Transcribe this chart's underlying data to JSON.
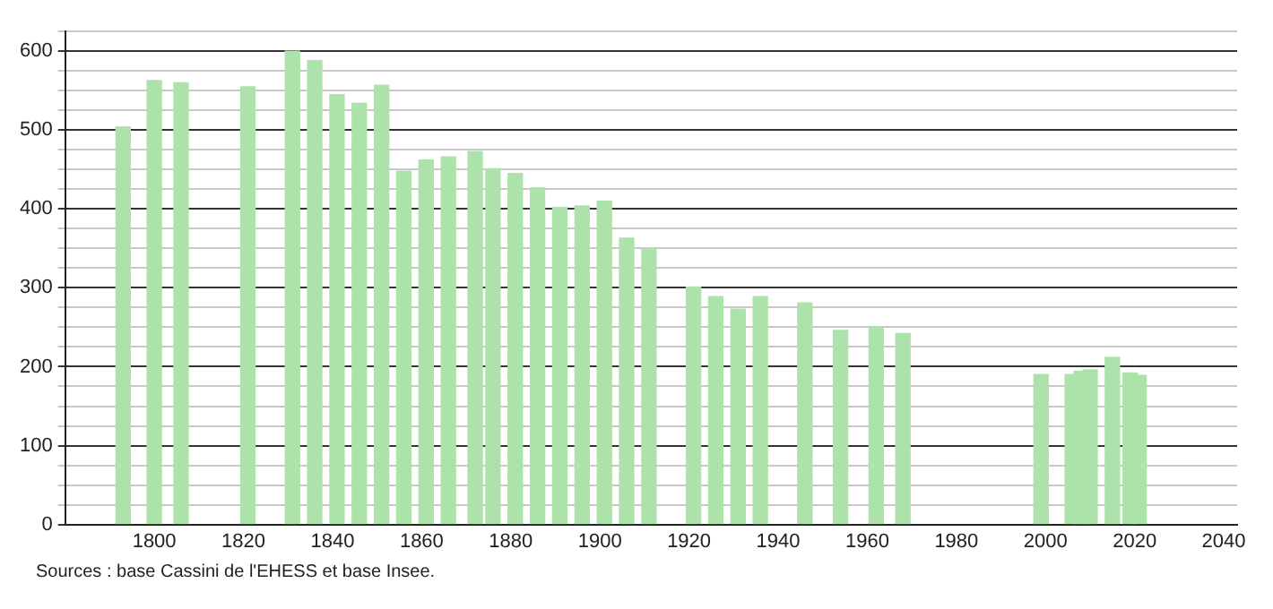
{
  "chart_data": {
    "type": "bar",
    "x": [
      1793,
      1800,
      1806,
      1821,
      1831,
      1836,
      1841,
      1846,
      1851,
      1856,
      1861,
      1866,
      1872,
      1876,
      1881,
      1886,
      1891,
      1896,
      1901,
      1906,
      1911,
      1921,
      1926,
      1931,
      1936,
      1946,
      1954,
      1962,
      1968,
      1999,
      2006,
      2008,
      2010,
      2015,
      2019,
      2021
    ],
    "values": [
      504,
      563,
      560,
      555,
      600,
      588,
      545,
      534,
      557,
      448,
      462,
      466,
      473,
      451,
      445,
      427,
      402,
      404,
      410,
      363,
      349,
      301,
      289,
      273,
      289,
      281,
      246,
      250,
      242,
      190,
      190,
      194,
      196,
      212,
      192,
      189
    ],
    "color": "#ade3ab",
    "xlim": [
      1780,
      2043
    ],
    "xticks": [
      1800,
      1820,
      1840,
      1860,
      1880,
      1900,
      1920,
      1940,
      1960,
      1980,
      2000,
      2020,
      2040
    ],
    "ylim": [
      0,
      625
    ],
    "yticks": [
      0,
      {
        "value": 25,
        "label": null
      },
      {
        "value": 50,
        "label": null
      },
      {
        "value": 75,
        "label": null
      },
      100,
      {
        "value": 125,
        "label": null
      },
      {
        "value": 150,
        "label": null
      },
      {
        "value": 175,
        "label": null
      },
      200,
      {
        "value": 225,
        "label": null
      },
      {
        "value": 250,
        "label": null
      },
      {
        "value": 275,
        "label": null
      },
      300,
      {
        "value": 325,
        "label": null
      },
      {
        "value": 350,
        "label": null
      },
      {
        "value": 375,
        "label": null
      },
      400,
      {
        "value": 425,
        "label": null
      },
      {
        "value": 450,
        "label": null
      },
      {
        "value": 475,
        "label": null
      },
      500,
      {
        "value": 525,
        "label": null
      },
      {
        "value": 550,
        "label": null
      },
      {
        "value": 575,
        "label": null
      },
      600,
      {
        "value": 625,
        "label": null
      }
    ],
    "grid": "y",
    "legend": false,
    "annotations": [
      "Sources : base Cassini de l'EHESS et base Insee."
    ]
  }
}
